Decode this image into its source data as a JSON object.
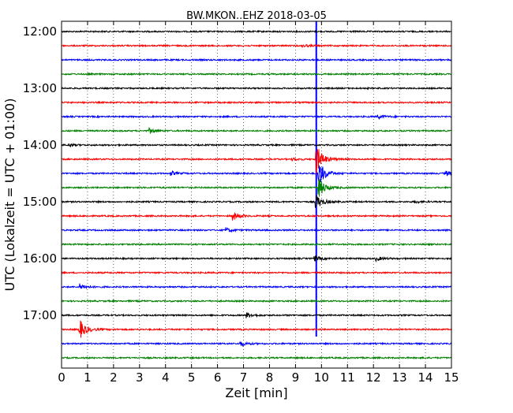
{
  "chart_data": {
    "type": "line",
    "title": "BW.MKON..EHZ 2018-03-05",
    "xlabel": "Zeit  [min]",
    "ylabel": "UTC (Lokalzeit = UTC + 01:00)",
    "xlim": [
      0,
      15
    ],
    "x_ticks": [
      "0",
      "1",
      "2",
      "3",
      "4",
      "5",
      "6",
      "7",
      "8",
      "9",
      "10",
      "11",
      "12",
      "13",
      "14",
      "15"
    ],
    "y_ticks": [
      "12:00",
      "13:00",
      "14:00",
      "15:00",
      "16:00",
      "17:00"
    ],
    "grid": true,
    "trace_interval_minutes": 15,
    "trace_colors": [
      "#000000",
      "#ff0000",
      "#0000ff",
      "#008000"
    ],
    "traces": [
      {
        "start": "12:00",
        "events": []
      },
      {
        "start": "12:15",
        "events": [
          {
            "t": 9.3,
            "amp": 0.15
          }
        ]
      },
      {
        "start": "12:30",
        "events": []
      },
      {
        "start": "12:45",
        "events": []
      },
      {
        "start": "13:00",
        "events": []
      },
      {
        "start": "13:15",
        "events": []
      },
      {
        "start": "13:30",
        "events": [
          {
            "t": 12.2,
            "amp": 0.2
          }
        ]
      },
      {
        "start": "13:45",
        "events": [
          {
            "t": 3.4,
            "amp": 0.3
          }
        ]
      },
      {
        "start": "14:00",
        "events": [
          {
            "t": 0.3,
            "amp": 0.15
          }
        ]
      },
      {
        "start": "14:15",
        "events": [
          {
            "t": 9.8,
            "amp": 1.9
          },
          {
            "t": 8.9,
            "amp": 0.15
          }
        ]
      },
      {
        "start": "14:30",
        "events": [
          {
            "t": 9.9,
            "amp": 1.6
          },
          {
            "t": 4.2,
            "amp": 0.25
          },
          {
            "t": 14.8,
            "amp": 0.3
          }
        ]
      },
      {
        "start": "14:45",
        "events": [
          {
            "t": 9.9,
            "amp": 1.2
          }
        ]
      },
      {
        "start": "15:00",
        "events": [
          {
            "t": 9.8,
            "amp": 0.9
          },
          {
            "t": 13.6,
            "amp": 0.15
          }
        ]
      },
      {
        "start": "15:15",
        "events": [
          {
            "t": 6.6,
            "amp": 0.5
          }
        ]
      },
      {
        "start": "15:30",
        "events": [
          {
            "t": 6.3,
            "amp": 0.3
          }
        ]
      },
      {
        "start": "15:45",
        "events": []
      },
      {
        "start": "16:00",
        "events": [
          {
            "t": 12.1,
            "amp": 0.25
          },
          {
            "t": 9.75,
            "amp": 0.3
          }
        ]
      },
      {
        "start": "16:15",
        "events": []
      },
      {
        "start": "16:30",
        "events": [
          {
            "t": 0.7,
            "amp": 0.35
          }
        ]
      },
      {
        "start": "16:45",
        "events": []
      },
      {
        "start": "17:00",
        "events": [
          {
            "t": 7.1,
            "amp": 0.35
          }
        ]
      },
      {
        "start": "17:15",
        "events": [
          {
            "t": 0.7,
            "amp": 1.2
          }
        ]
      },
      {
        "start": "17:30",
        "events": [
          {
            "t": 6.9,
            "amp": 0.25
          }
        ]
      },
      {
        "start": "17:45",
        "events": []
      }
    ],
    "vertical_markers": [
      {
        "x": 9.8,
        "from": "12:00",
        "to": "17:15",
        "color": "#0000ff"
      }
    ]
  }
}
